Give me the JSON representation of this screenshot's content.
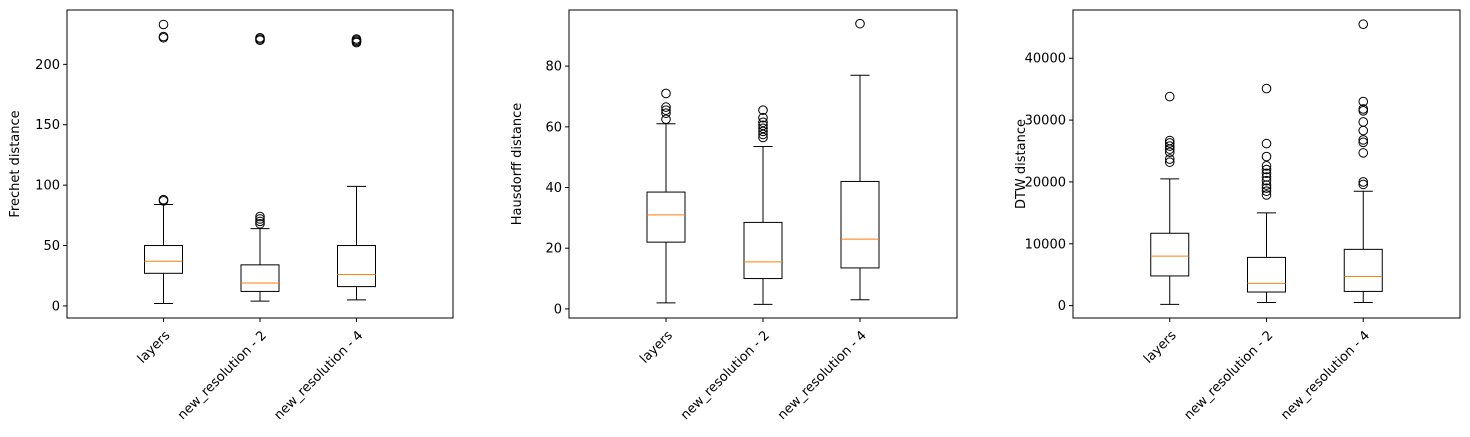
{
  "chart_data": [
    {
      "type": "box",
      "title": "",
      "xlabel": "",
      "ylabel": "Frechet distance",
      "categories": [
        "layers",
        "new_resolution - 2",
        "new_resolution - 4"
      ],
      "ylim": [
        -10,
        245
      ],
      "yticks": [
        0,
        50,
        100,
        150,
        200
      ],
      "ytick_labels": [
        "0",
        "50",
        "100",
        "150",
        "200"
      ],
      "boxes": [
        {
          "whisker_low": 2,
          "q1": 27,
          "median": 37,
          "q3": 50,
          "whisker_high": 84,
          "outliers": [
            87,
            88,
            222,
            223,
            233
          ]
        },
        {
          "whisker_low": 4,
          "q1": 12,
          "median": 19,
          "q3": 34,
          "whisker_high": 64,
          "outliers": [
            68,
            70,
            72,
            74,
            220,
            221,
            222
          ]
        },
        {
          "whisker_low": 5,
          "q1": 16,
          "median": 26,
          "q3": 50,
          "whisker_high": 99,
          "outliers": [
            218,
            219,
            220,
            221
          ]
        }
      ]
    },
    {
      "type": "box",
      "title": "",
      "xlabel": "",
      "ylabel": "Hausdorff distance",
      "categories": [
        "layers",
        "new_resolution - 2",
        "new_resolution - 4"
      ],
      "ylim": [
        -3,
        98.5
      ],
      "yticks": [
        0,
        20,
        40,
        60,
        80
      ],
      "ytick_labels": [
        "0",
        "20",
        "40",
        "60",
        "80"
      ],
      "boxes": [
        {
          "whisker_low": 2,
          "q1": 22,
          "median": 31,
          "q3": 38.5,
          "whisker_high": 61,
          "outliers": [
            62.5,
            64.5,
            65.5,
            66.5,
            71
          ]
        },
        {
          "whisker_low": 1.5,
          "q1": 10,
          "median": 15.5,
          "q3": 28.5,
          "whisker_high": 53.5,
          "outliers": [
            56.5,
            57.5,
            58.5,
            59.5,
            60.5,
            61.5,
            63,
            65.5
          ]
        },
        {
          "whisker_low": 3,
          "q1": 13.5,
          "median": 23,
          "q3": 42,
          "whisker_high": 77,
          "outliers": [
            94
          ]
        }
      ]
    },
    {
      "type": "box",
      "title": "",
      "xlabel": "",
      "ylabel": "DTW distance",
      "categories": [
        "layers",
        "new_resolution - 2",
        "new_resolution - 4"
      ],
      "ylim": [
        -2000,
        47800
      ],
      "yticks": [
        0,
        10000,
        20000,
        30000,
        40000
      ],
      "ytick_labels": [
        "0",
        "10000",
        "20000",
        "30000",
        "40000"
      ],
      "boxes": [
        {
          "whisker_low": 200,
          "q1": 4800,
          "median": 8000,
          "q3": 11700,
          "whisker_high": 20500,
          "outliers": [
            23200,
            23700,
            24800,
            25300,
            25800,
            26300,
            26700,
            33800
          ]
        },
        {
          "whisker_low": 500,
          "q1": 2200,
          "median": 3600,
          "q3": 7800,
          "whisker_high": 15000,
          "outliers": [
            17900,
            18500,
            19000,
            19500,
            20200,
            20800,
            21400,
            22000,
            22600,
            24100,
            26200,
            35100
          ]
        },
        {
          "whisker_low": 500,
          "q1": 2300,
          "median": 4700,
          "q3": 9100,
          "whisker_high": 18500,
          "outliers": [
            19600,
            20000,
            24700,
            26400,
            26800,
            28300,
            29700,
            31500,
            31800,
            33000,
            45500
          ]
        }
      ]
    }
  ],
  "colors": {
    "median": "#ff7f0e",
    "box": "#000000",
    "background": "#ffffff"
  }
}
